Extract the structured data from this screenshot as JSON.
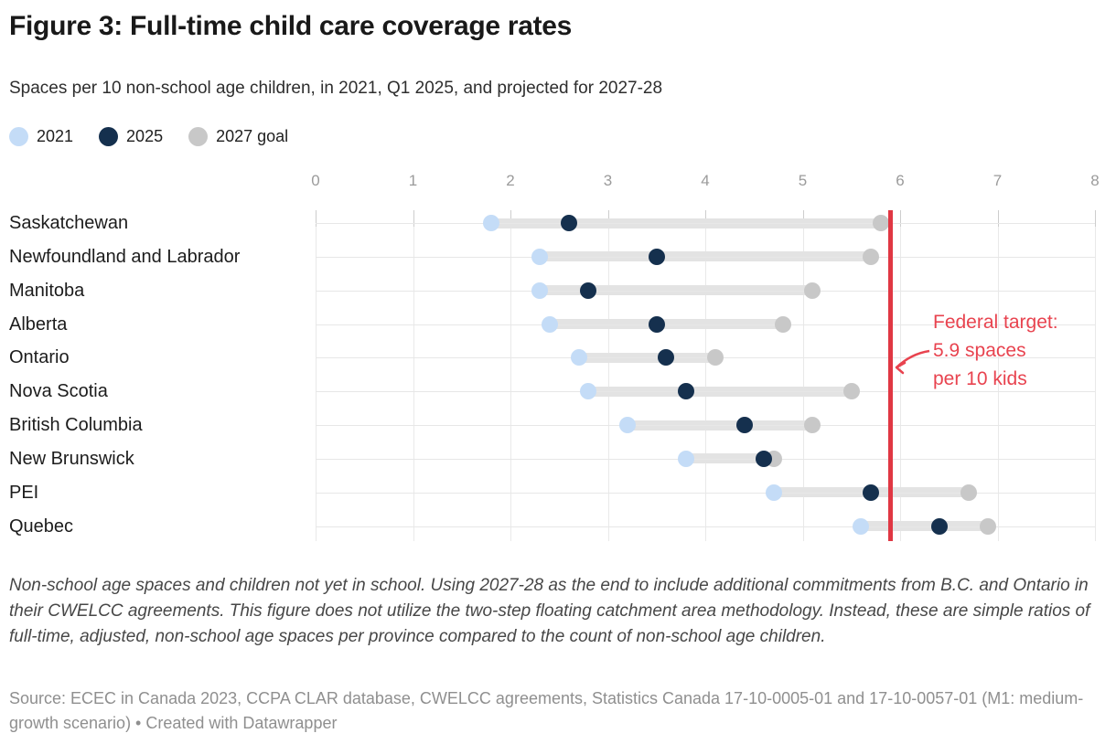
{
  "header": {
    "title": "Figure 3: Full-time child care coverage rates",
    "subtitle": "Spaces per 10 non-school age children, in 2021, Q1 2025, and projected for 2027-28"
  },
  "legend": [
    {
      "label": "2021",
      "color": "#c4dcf7"
    },
    {
      "label": "2025",
      "color": "#15304e"
    },
    {
      "label": "2027 goal",
      "color": "#c8c8c8"
    }
  ],
  "chart_data": {
    "type": "scatter",
    "subtype": "dot-range-plot",
    "title": "Figure 3: Full-time child care coverage rates",
    "subtitle": "Spaces per 10 non-school age children, in 2021, Q1 2025, and projected for 2027-28",
    "categories": [
      "Saskatchewan",
      "Newfoundland and Labrador",
      "Manitoba",
      "Alberta",
      "Ontario",
      "Nova Scotia",
      "British Columbia",
      "New Brunswick",
      "PEI",
      "Quebec"
    ],
    "series": [
      {
        "name": "2021",
        "color": "#c4dcf7",
        "values": [
          1.8,
          2.3,
          2.3,
          2.4,
          2.7,
          2.8,
          3.2,
          3.8,
          4.7,
          5.6
        ]
      },
      {
        "name": "2025",
        "color": "#15304e",
        "values": [
          2.6,
          3.5,
          2.8,
          3.5,
          3.6,
          3.8,
          4.4,
          4.6,
          5.7,
          6.4
        ]
      },
      {
        "name": "2027 goal",
        "color": "#c8c8c8",
        "values": [
          5.8,
          5.7,
          5.1,
          4.8,
          4.1,
          5.5,
          5.1,
          4.7,
          6.7,
          6.9
        ]
      }
    ],
    "x_axis": {
      "min": 0,
      "max": 8,
      "tick_labels": [
        "0",
        "1",
        "2",
        "3",
        "4",
        "5",
        "6",
        "7",
        "8"
      ],
      "grid": true,
      "position": "top"
    },
    "reference_line": {
      "value": 5.9,
      "color": "#e03743",
      "label": "Federal target: 5.9 spaces per 10 kids"
    },
    "legend_position": "top-left",
    "bar_color": "#e3e3e3"
  },
  "annotation": {
    "lines": [
      "Federal target:",
      "5.9 spaces",
      "per 10 kids"
    ],
    "color": "#e8434f"
  },
  "footnote": "Non-school age spaces and children not yet in school. Using 2027-28 as the end to include additional commitments from B.C. and Ontario in their CWELCC agreements. This figure does not utilize the two-step floating catchment area methodology. Instead, these are simple ratios of full-time, adjusted, non-school age spaces per province compared to the count of non-school age children.",
  "source": "Source: ECEC in Canada 2023, CCPA CLAR database, CWELCC agreements, Statistics Canada 17-10-0005-01 and 17-10-0057-01 (M1: medium-growth scenario) • Created with Datawrapper"
}
